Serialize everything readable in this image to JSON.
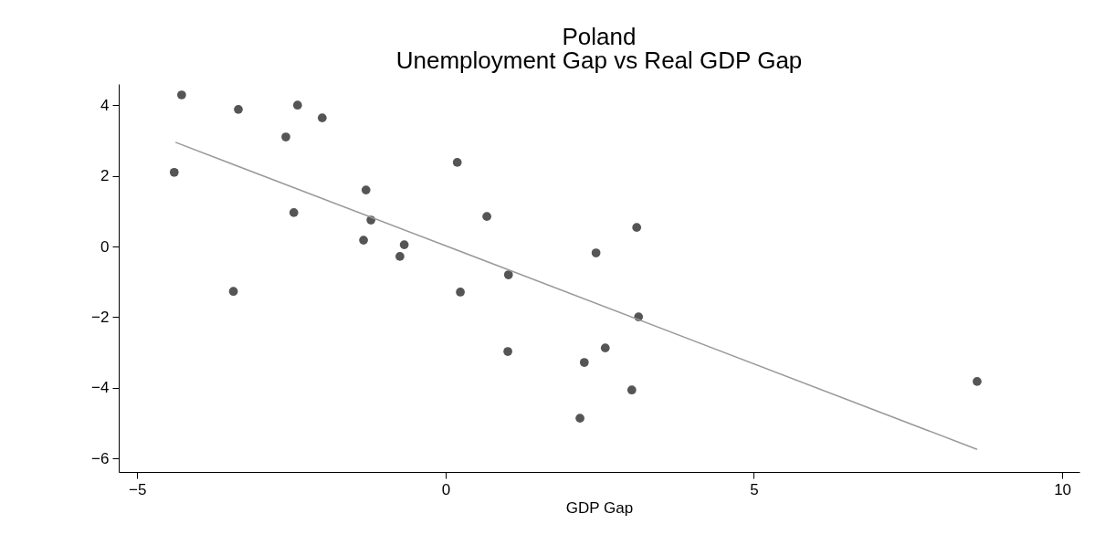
{
  "chart_data": {
    "type": "scatter",
    "title": "Poland",
    "subtitle": "Unemployment Gap vs Real GDP Gap",
    "xlabel": "GDP Gap",
    "xlim": [
      -5.3,
      10.28
    ],
    "xticks": [
      -5,
      0,
      5,
      10
    ],
    "ylim": [
      -6.38,
      4.6
    ],
    "yticks": [
      -6,
      -4,
      -2,
      0,
      2,
      4
    ],
    "grid": false,
    "series": [
      {
        "marker": "circle",
        "color": "#555555",
        "x": [
          -4.28,
          -4.4,
          -3.36,
          -2.4,
          -2.59,
          -2.0,
          -2.46,
          -3.44,
          -1.29,
          -1.21,
          -1.33,
          -0.67,
          -0.74,
          0.19,
          0.67,
          1.02,
          0.24,
          1.01,
          2.44,
          3.1,
          3.13,
          2.59,
          2.25,
          3.02,
          2.18,
          8.62
        ],
        "values": [
          4.29,
          2.1,
          3.88,
          4.0,
          3.1,
          3.64,
          0.96,
          -1.27,
          1.6,
          0.75,
          0.18,
          0.05,
          -0.28,
          2.38,
          0.85,
          -0.8,
          -1.29,
          -2.97,
          -0.18,
          0.54,
          -1.99,
          -2.87,
          -3.28,
          -4.06,
          -4.86,
          -3.82
        ]
      },
      {
        "type": "line",
        "color": "#999999",
        "line_style": "solid",
        "x": [
          -4.38,
          8.62
        ],
        "values": [
          2.95,
          -5.74
        ]
      }
    ]
  }
}
